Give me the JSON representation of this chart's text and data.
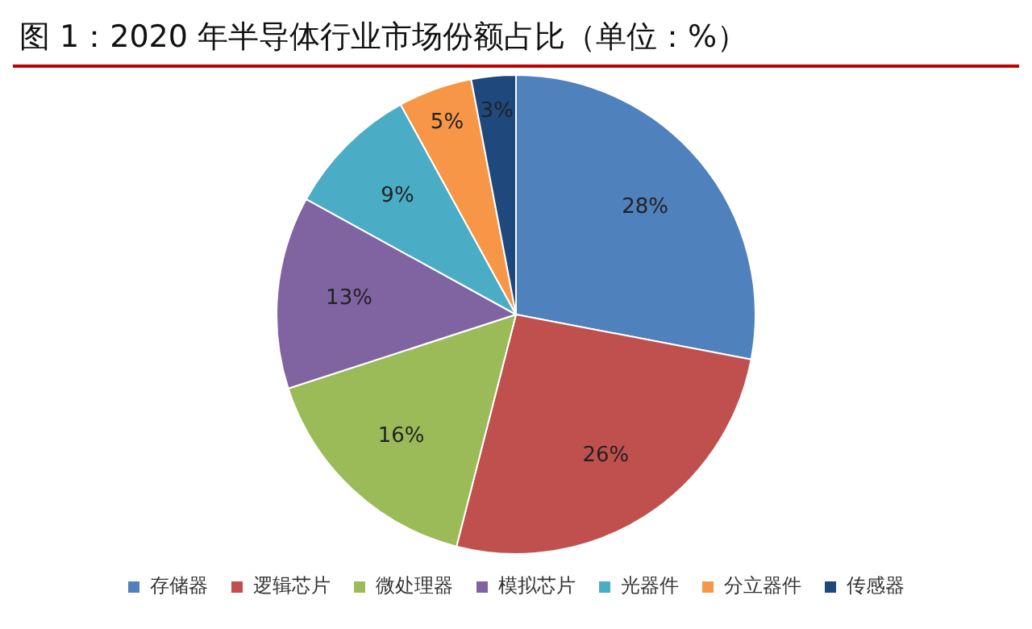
{
  "chart_data": {
    "type": "pie",
    "title": "图 1：2020 年半导体行业市场份额占比（单位：%）",
    "categories": [
      "存储器",
      "逻辑芯片",
      "微处理器",
      "模拟芯片",
      "光器件",
      "分立器件",
      "传感器"
    ],
    "values": [
      28,
      26,
      16,
      13,
      9,
      5,
      3
    ],
    "colors": [
      "#4f81bd",
      "#c0504d",
      "#9bbb59",
      "#8064a2",
      "#4bacc6",
      "#f79646",
      "#1f497d"
    ],
    "value_labels": [
      "28%",
      "26%",
      "16%",
      "13%",
      "9%",
      "5%",
      "3%"
    ],
    "legend": "bottom"
  }
}
